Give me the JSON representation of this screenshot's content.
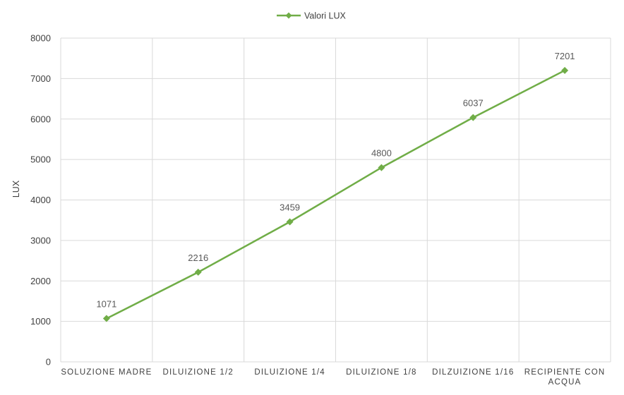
{
  "chart_data": {
    "type": "line",
    "title": "",
    "xlabel": "",
    "ylabel": "LUX",
    "ylim": [
      0,
      8000
    ],
    "ytick_step": 1000,
    "grid": true,
    "legend_position": "top",
    "categories": [
      [
        "SOLUZIONE MADRE"
      ],
      [
        "DILUIZIONE 1/2"
      ],
      [
        "DILUIZIONE 1/4"
      ],
      [
        "DILUIZIONE 1/8"
      ],
      [
        "DILZUIZIONE 1/16"
      ],
      [
        "RECIPIENTE CON",
        "ACQUA"
      ]
    ],
    "series": [
      {
        "name": "Valori LUX",
        "color": "#70ad47",
        "marker": "diamond",
        "values": [
          1071,
          2216,
          3459,
          4800,
          6037,
          7201
        ]
      }
    ]
  }
}
